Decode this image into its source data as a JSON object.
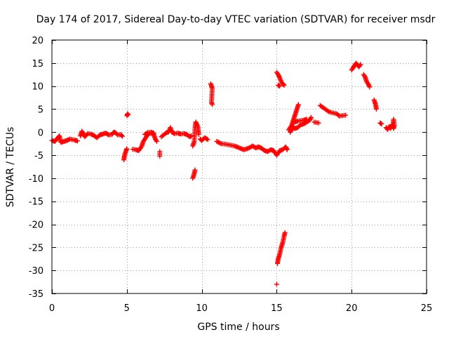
{
  "chart_data": {
    "type": "scatter",
    "title": "Day 174 of 2017, Sidereal Day-to-day VTEC variation (SDTVAR) for receiver msdr",
    "xlabel": "GPS time / hours",
    "ylabel": "SDTVAR / TECUs",
    "xlim": [
      0,
      25
    ],
    "ylim": [
      -35,
      20
    ],
    "xticks": [
      0,
      5,
      10,
      15,
      20,
      25
    ],
    "yticks": [
      20,
      15,
      10,
      5,
      0,
      -5,
      -10,
      -15,
      -20,
      -25,
      -30,
      -35
    ],
    "grid": true,
    "marker": "+",
    "color": "#ff0000",
    "series": [
      {
        "name": "SDTVAR",
        "segments": [
          [
            [
              0.0,
              -1.8
            ],
            [
              0.2,
              -2.0
            ],
            [
              0.4,
              -1.2
            ],
            [
              0.5,
              -0.8
            ],
            [
              0.6,
              -2.2
            ],
            [
              0.8,
              -2.0
            ],
            [
              1.0,
              -1.8
            ],
            [
              1.2,
              -1.5
            ],
            [
              1.5,
              -1.7
            ],
            [
              1.7,
              -1.9
            ]
          ],
          [
            [
              1.9,
              -0.8
            ],
            [
              2.0,
              0.2
            ],
            [
              2.1,
              -0.4
            ],
            [
              2.2,
              -1.0
            ],
            [
              2.4,
              -0.3
            ],
            [
              2.6,
              -0.4
            ],
            [
              2.8,
              -0.7
            ],
            [
              3.0,
              -1.2
            ],
            [
              3.2,
              -0.6
            ],
            [
              3.4,
              -0.4
            ],
            [
              3.6,
              -0.2
            ],
            [
              3.8,
              -0.6
            ],
            [
              4.0,
              -0.5
            ],
            [
              4.1,
              -0.1
            ],
            [
              4.2,
              0.0
            ],
            [
              4.4,
              -0.6
            ],
            [
              4.6,
              -0.5
            ],
            [
              4.7,
              -0.9
            ]
          ],
          [
            [
              4.8,
              -6.0
            ],
            [
              4.85,
              -5.0
            ],
            [
              4.9,
              -4.5
            ],
            [
              4.95,
              -4.0
            ],
            [
              5.0,
              -3.6
            ]
          ],
          [
            [
              5.0,
              3.6
            ],
            [
              5.05,
              4.0
            ],
            [
              5.1,
              3.8
            ]
          ],
          [
            [
              5.4,
              -3.7
            ],
            [
              5.6,
              -3.8
            ],
            [
              5.8,
              -4.0
            ],
            [
              6.0,
              -3.0
            ],
            [
              6.1,
              -2.0
            ],
            [
              6.2,
              -1.5
            ],
            [
              6.3,
              -1.0
            ],
            [
              6.4,
              -0.5
            ],
            [
              6.5,
              -0.3
            ],
            [
              6.7,
              -0.3
            ],
            [
              6.8,
              -0.5
            ],
            [
              6.9,
              -1.5
            ],
            [
              7.0,
              -2.0
            ]
          ],
          [
            [
              6.2,
              -0.5
            ],
            [
              6.4,
              -0.1
            ],
            [
              6.6,
              0.0
            ],
            [
              6.8,
              -0.2
            ]
          ],
          [
            [
              7.2,
              -4.2
            ],
            [
              7.2,
              -5.2
            ]
          ],
          [
            [
              7.3,
              -1.0
            ],
            [
              7.6,
              -0.2
            ],
            [
              7.8,
              0.1
            ],
            [
              7.9,
              1.0
            ],
            [
              8.0,
              0.0
            ],
            [
              8.2,
              -0.3
            ],
            [
              8.4,
              -0.2
            ],
            [
              8.6,
              -0.4
            ],
            [
              8.8,
              -0.3
            ],
            [
              9.0,
              -0.5
            ],
            [
              9.2,
              -1.0
            ],
            [
              9.3,
              -0.8
            ]
          ],
          [
            [
              9.4,
              -10.0
            ],
            [
              9.5,
              -9.0
            ],
            [
              9.55,
              -8.2
            ]
          ],
          [
            [
              9.4,
              -3.0
            ],
            [
              9.5,
              -2.0
            ],
            [
              9.55,
              1.0
            ],
            [
              9.6,
              2.2
            ],
            [
              9.7,
              1.5
            ],
            [
              9.75,
              1.0
            ],
            [
              9.8,
              -0.5
            ]
          ],
          [
            [
              9.9,
              -1.5
            ],
            [
              10.0,
              -1.8
            ],
            [
              10.2,
              -1.2
            ],
            [
              10.4,
              -1.6
            ]
          ],
          [
            [
              10.6,
              10.5
            ],
            [
              10.7,
              9.5
            ],
            [
              10.65,
              6.5
            ],
            [
              10.7,
              6.0
            ]
          ],
          [
            [
              11.0,
              -2.0
            ],
            [
              11.3,
              -2.5
            ],
            [
              11.6,
              -2.6
            ],
            [
              11.9,
              -2.8
            ],
            [
              12.2,
              -3.0
            ],
            [
              12.5,
              -3.4
            ],
            [
              12.8,
              -3.8
            ],
            [
              13.1,
              -3.5
            ],
            [
              13.4,
              -3.0
            ],
            [
              13.6,
              -3.4
            ],
            [
              13.8,
              -3.2
            ],
            [
              14.0,
              -3.5
            ],
            [
              14.2,
              -4.0
            ],
            [
              14.4,
              -4.2
            ],
            [
              14.6,
              -3.8
            ],
            [
              14.8,
              -4.0
            ],
            [
              15.0,
              -5.0
            ],
            [
              15.2,
              -4.0
            ],
            [
              15.4,
              -3.8
            ],
            [
              15.6,
              -3.2
            ],
            [
              15.7,
              -3.8
            ]
          ],
          [
            [
              15.0,
              13.0
            ],
            [
              15.1,
              12.5
            ],
            [
              15.2,
              11.8
            ],
            [
              15.3,
              11.0
            ],
            [
              15.4,
              10.5
            ],
            [
              15.5,
              10.2
            ]
          ],
          [
            [
              15.1,
              10.2
            ],
            [
              15.2,
              10.0
            ]
          ],
          [
            [
              15.0,
              -33.0
            ]
          ],
          [
            [
              15.05,
              -28.5
            ],
            [
              15.1,
              -27.5
            ],
            [
              15.2,
              -26.5
            ],
            [
              15.3,
              -25.0
            ],
            [
              15.4,
              -24.0
            ],
            [
              15.5,
              -22.5
            ],
            [
              15.55,
              -21.8
            ]
          ],
          [
            [
              15.8,
              0.5
            ],
            [
              16.0,
              1.5
            ],
            [
              16.1,
              2.5
            ],
            [
              16.2,
              3.5
            ],
            [
              16.3,
              4.5
            ],
            [
              16.4,
              5.5
            ],
            [
              16.45,
              6.0
            ]
          ],
          [
            [
              15.9,
              0.0
            ],
            [
              16.0,
              0.6
            ],
            [
              16.1,
              1.2
            ],
            [
              16.2,
              0.8
            ],
            [
              16.4,
              1.0
            ],
            [
              16.6,
              1.6
            ],
            [
              16.8,
              1.8
            ],
            [
              17.0,
              2.2
            ],
            [
              17.2,
              2.6
            ],
            [
              17.3,
              3.2
            ]
          ],
          [
            [
              16.2,
              2.2
            ],
            [
              16.4,
              2.4
            ],
            [
              16.6,
              2.5
            ],
            [
              16.8,
              2.6
            ],
            [
              17.0,
              2.8
            ]
          ],
          [
            [
              17.5,
              2.2
            ],
            [
              17.8,
              2.0
            ]
          ],
          [
            [
              17.9,
              5.8
            ],
            [
              18.5,
              4.4
            ],
            [
              19.0,
              4.0
            ],
            [
              19.2,
              3.5
            ],
            [
              19.4,
              3.6
            ],
            [
              19.6,
              3.7
            ]
          ],
          [
            [
              20.0,
              13.5
            ],
            [
              20.1,
              14.0
            ],
            [
              20.2,
              14.5
            ],
            [
              20.3,
              15.0
            ],
            [
              20.4,
              14.5
            ],
            [
              20.5,
              14.2
            ],
            [
              20.6,
              14.7
            ]
          ],
          [
            [
              20.8,
              12.5
            ],
            [
              20.9,
              12.0
            ],
            [
              21.0,
              11.0
            ],
            [
              21.1,
              10.5
            ],
            [
              21.2,
              9.8
            ]
          ],
          [
            [
              21.5,
              7.0
            ],
            [
              21.6,
              6.0
            ],
            [
              21.65,
              5.0
            ]
          ],
          [
            [
              21.9,
              2.0
            ],
            [
              22.0,
              1.8
            ]
          ],
          [
            [
              22.3,
              1.0
            ],
            [
              22.4,
              0.6
            ],
            [
              22.5,
              1.2
            ],
            [
              22.6,
              0.8
            ],
            [
              22.7,
              1.6
            ],
            [
              22.75,
              1.2
            ],
            [
              22.8,
              2.8
            ],
            [
              22.85,
              1.5
            ],
            [
              22.8,
              0.8
            ]
          ]
        ]
      }
    ]
  }
}
